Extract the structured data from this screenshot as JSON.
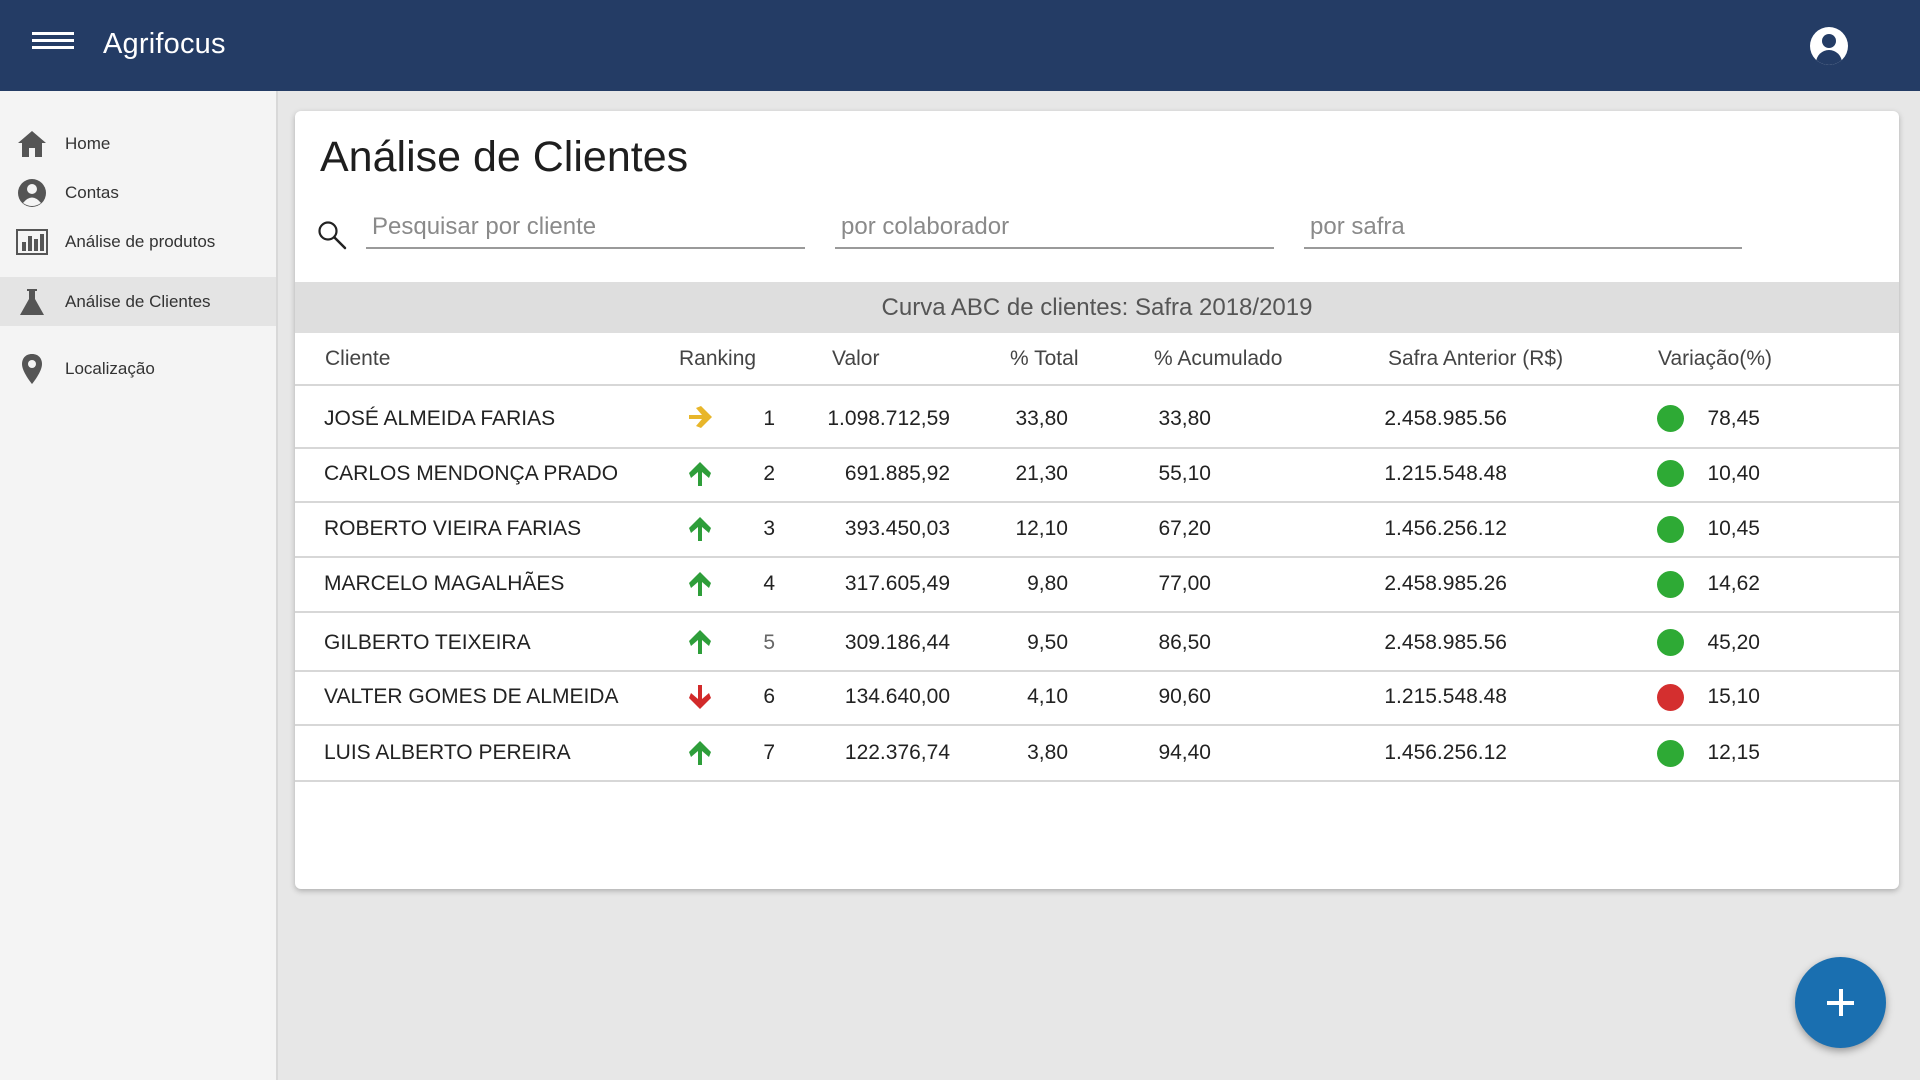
{
  "app": {
    "title": "Agrifocus"
  },
  "sidebar": {
    "items": [
      {
        "label": "Home",
        "icon": "home-icon"
      },
      {
        "label": "Contas",
        "icon": "user-circle-icon"
      },
      {
        "label": "Análise de produtos",
        "icon": "bar-chart-icon"
      },
      {
        "label": "Análise de Clientes",
        "icon": "flask-icon",
        "active": true
      },
      {
        "label": "Localização",
        "icon": "location-pin-icon"
      }
    ]
  },
  "main": {
    "title": "Análise de Clientes",
    "filters": {
      "cliente_placeholder": "Pesquisar por cliente",
      "colaborador_placeholder": "por colaborador",
      "safra_placeholder": "por safra"
    },
    "table_title": "Curva ABC de clientes: Safra 2018/2019",
    "columns": [
      "Cliente",
      "Ranking",
      "Valor",
      "% Total",
      "% Acumulado",
      "Safra Anterior (R$)",
      "Variação(%)"
    ],
    "rows": [
      {
        "cliente": "JOSÉ ALMEIDA FARIAS",
        "trend": "right",
        "ranking": "1",
        "valor": "1.098.712,59",
        "total": "33,80",
        "acumulado": "33,80",
        "anterior": "2.458.985.56",
        "status": "green",
        "variacao": "78,45"
      },
      {
        "cliente": "CARLOS MENDONÇA PRADO",
        "trend": "up",
        "ranking": "2",
        "valor": "691.885,92",
        "total": "21,30",
        "acumulado": "55,10",
        "anterior": "1.215.548.48",
        "status": "green",
        "variacao": "10,40"
      },
      {
        "cliente": "ROBERTO VIEIRA FARIAS",
        "trend": "up",
        "ranking": "3",
        "valor": "393.450,03",
        "total": "12,10",
        "acumulado": "67,20",
        "anterior": "1.456.256.12",
        "status": "green",
        "variacao": "10,45"
      },
      {
        "cliente": "MARCELO MAGALHÃES",
        "trend": "up",
        "ranking": "4",
        "valor": "317.605,49",
        "total": "9,80",
        "acumulado": "77,00",
        "anterior": "2.458.985.26",
        "status": "green",
        "variacao": "14,62"
      },
      {
        "cliente": "GILBERTO TEIXEIRA",
        "trend": "up",
        "ranking": "5",
        "valor": "309.186,44",
        "total": "9,50",
        "acumulado": "86,50",
        "anterior": "2.458.985.56",
        "status": "green",
        "variacao": "45,20"
      },
      {
        "cliente": "VALTER GOMES DE ALMEIDA",
        "trend": "down",
        "ranking": "6",
        "valor": "134.640,00",
        "total": "4,10",
        "acumulado": "90,60",
        "anterior": "1.215.548.48",
        "status": "red",
        "variacao": "15,10"
      },
      {
        "cliente": "LUIS ALBERTO PEREIRA",
        "trend": "up",
        "ranking": "7",
        "valor": "122.376,74",
        "total": "3,80",
        "acumulado": "94,40",
        "anterior": "1.456.256.12",
        "status": "green",
        "variacao": "12,15"
      }
    ]
  },
  "colors": {
    "topbar": "#243c65",
    "arrow_right": "#e8b62a",
    "arrow_up": "#2e9e3a",
    "arrow_down": "#d22a2a",
    "status_green": "#2eaa35",
    "status_red": "#d42f2f",
    "fab": "#1a6fb0"
  }
}
